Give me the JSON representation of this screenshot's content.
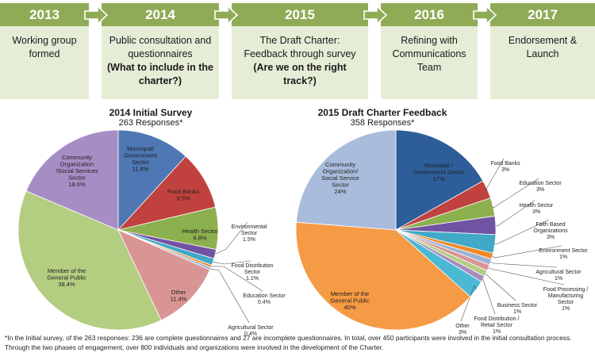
{
  "timeline": [
    {
      "year": "2013",
      "lines": [
        "Working group",
        "formed"
      ],
      "bold": []
    },
    {
      "year": "2014",
      "lines": [
        "Public consultation and",
        "questionnaires"
      ],
      "bold": [
        "(What to include in the",
        "charter?)"
      ]
    },
    {
      "year": "2015",
      "lines": [
        "The Draft Charter:",
        "Feedback through survey"
      ],
      "bold": [
        "(Are we on the right",
        "track?)"
      ]
    },
    {
      "year": "2016",
      "lines": [
        "Refining with",
        "Communications",
        "Team"
      ],
      "bold": []
    },
    {
      "year": "2017",
      "lines": [
        "Endorsement &",
        "Launch"
      ],
      "bold": []
    }
  ],
  "chart_data": [
    {
      "type": "pie",
      "title": "2014 Initial Survey",
      "subtitle": "263 Responses*",
      "slices": [
        {
          "label": "Municipal/ Government Sector",
          "value": 11.8,
          "text": "11.8%",
          "color": "#4e77b3"
        },
        {
          "label": "Food Banks",
          "value": 9.5,
          "text": "9.5%",
          "color": "#c0413e"
        },
        {
          "label": "Health Sector",
          "value": 6.8,
          "text": "6.8%",
          "color": "#8db04e"
        },
        {
          "label": "Environmental Sector",
          "value": 1.5,
          "text": "1.5%",
          "color": "#7153a3"
        },
        {
          "label": "Food Distribution Sector",
          "value": 1.1,
          "text": "1.1%",
          "color": "#3fa9c6"
        },
        {
          "label": "Education Sector",
          "value": 0.4,
          "text": "0.4%",
          "color": "#f08a2a"
        },
        {
          "label": "Agricultural Sector",
          "value": 0.4,
          "text": "0.4%",
          "color": "#9cb1d6"
        },
        {
          "label": "Other",
          "value": 11.4,
          "text": "11.4%",
          "color": "#d99593"
        },
        {
          "label": "Member of the General Public",
          "value": 38.4,
          "text": "38.4%",
          "color": "#b3cd81"
        },
        {
          "label": "Community Organization /Social Services Sector",
          "value": 18.6,
          "text": "18.6%",
          "color": "#a68ec4"
        }
      ]
    },
    {
      "type": "pie",
      "title": "2015 Draft Charter Feedback",
      "subtitle": "358 Responses*",
      "slices": [
        {
          "label": "Municipal / Government Sector",
          "value": 17,
          "text": "17%",
          "color": "#2e5e9a"
        },
        {
          "label": "Food Banks",
          "value": 3,
          "text": "3%",
          "color": "#c0413e"
        },
        {
          "label": "Education Sector",
          "value": 3,
          "text": "3%",
          "color": "#8db04e"
        },
        {
          "label": "Health Sector",
          "value": 3,
          "text": "3%",
          "color": "#7153a3"
        },
        {
          "label": "Faith Based Organizations",
          "value": 3,
          "text": "3%",
          "color": "#3fa9c6"
        },
        {
          "label": "Environment Sector",
          "value": 1,
          "text": "1%",
          "color": "#f08a2a"
        },
        {
          "label": "Agricultural Sector",
          "value": 1,
          "text": "1%",
          "color": "#9cb1d6"
        },
        {
          "label": "Food Processing / Manufacturing Sector",
          "value": 1,
          "text": "1%",
          "color": "#d99593"
        },
        {
          "label": "Business Sector",
          "value": 1,
          "text": "1%",
          "color": "#b3cd81"
        },
        {
          "label": "Food Distribution / Retail Sector",
          "value": 1,
          "text": "1%",
          "color": "#a68ec4"
        },
        {
          "label": "Other",
          "value": 3,
          "text": "3%",
          "color": "#4bb8d4"
        },
        {
          "label": "Member of the General Public",
          "value": 40,
          "text": "40%",
          "color": "#f59a45"
        },
        {
          "label": "Community Organization/ Social Service Sector",
          "value": 24,
          "text": "24%",
          "color": "#a9bcdc"
        }
      ]
    }
  ],
  "footnote": "*In the Initial survey, of the 263 responses: 236 are complete questionnaires and 27 are incomplete questionnaires. In total, over 450 participants were involved in the initial consultation process.  Through the two phases of engagement, over 800 individuals and organizations were involved in the development of the Charter."
}
